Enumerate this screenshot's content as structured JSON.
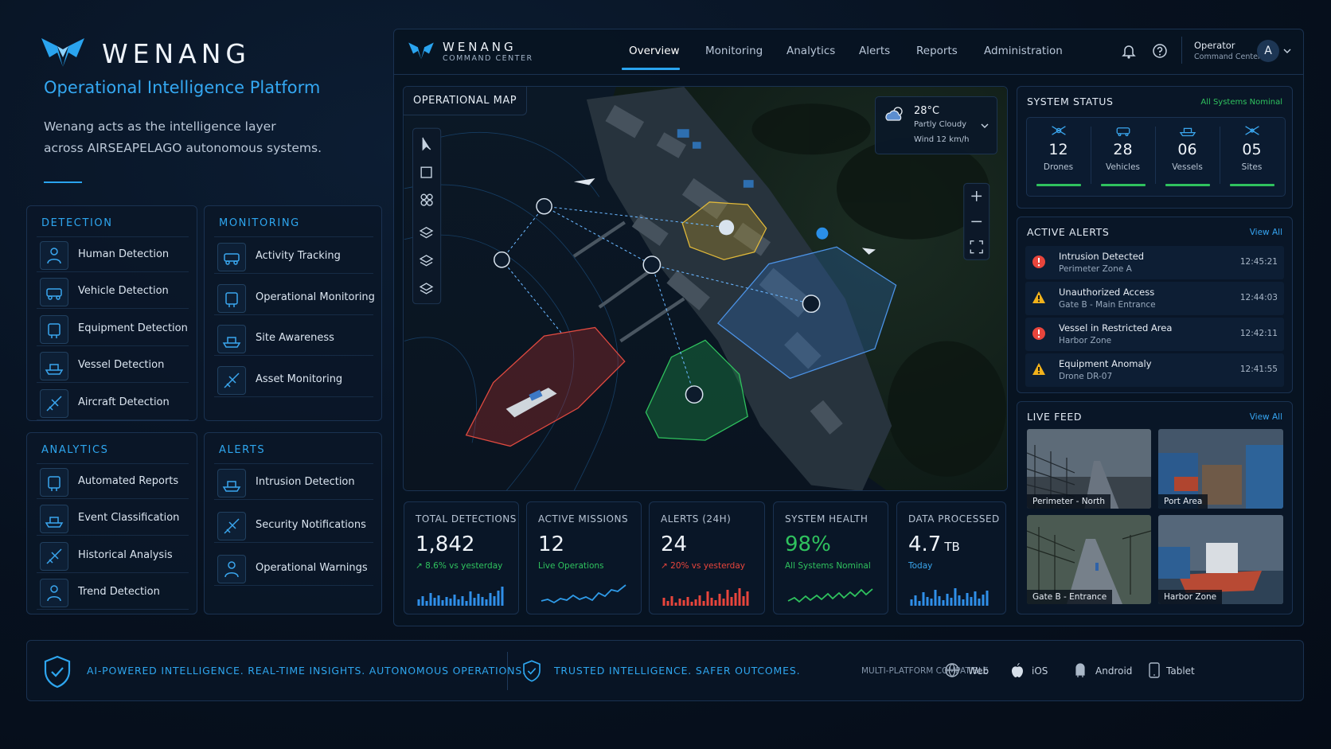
{
  "brand": {
    "name": "WENANG",
    "tagline": "Operational Intelligence Platform",
    "description": [
      "Wenang acts as the intelligence layer",
      "across AIRSEAPELAGO autonomous systems."
    ]
  },
  "modules": [
    {
      "title": "DETECTION",
      "items": [
        "Human Detection",
        "Vehicle Detection",
        "Equipment Detection",
        "Vessel Detection",
        "Aircraft Detection"
      ]
    },
    {
      "title": "MONITORING",
      "items": [
        "Activity Tracking",
        "Operational Monitoring",
        "Site Awareness",
        "Asset Monitoring"
      ]
    },
    {
      "title": "ANALYTICS",
      "items": [
        "Automated Reports",
        "Event Classification",
        "Historical Analysis",
        "Trend Detection"
      ]
    },
    {
      "title": "ALERTS",
      "items": [
        "Intrusion Detection",
        "Security Notifications",
        "Operational Warnings"
      ]
    }
  ],
  "header": {
    "brand": "WENANG",
    "subtitle": "COMMAND CENTER",
    "nav": [
      "Overview",
      "Monitoring",
      "Analytics",
      "Alerts",
      "Reports",
      "Administration"
    ],
    "active_nav": 0,
    "user": {
      "name": "Operator",
      "role": "Command Center",
      "initial": "A"
    }
  },
  "map": {
    "title": "OPERATIONAL MAP",
    "weather": {
      "temperature": "28°C",
      "condition": "Partly Cloudy",
      "wind": "Wind 12 km/h"
    }
  },
  "system_status": {
    "title": "SYSTEM STATUS",
    "status": "All Systems Nominal",
    "items": [
      {
        "value": "12",
        "label": "Drones"
      },
      {
        "value": "28",
        "label": "Vehicles"
      },
      {
        "value": "06",
        "label": "Vessels"
      },
      {
        "value": "05",
        "label": "Sites"
      }
    ]
  },
  "active_alerts": {
    "title": "ACTIVE ALERTS",
    "link": "View All",
    "items": [
      {
        "title": "Intrusion Detected",
        "location": "Perimeter Zone A",
        "time": "12:45:21",
        "level": "critical"
      },
      {
        "title": "Unauthorized Access",
        "location": "Gate B - Main Entrance",
        "time": "12:44:03",
        "level": "warning"
      },
      {
        "title": "Vessel in Restricted Area",
        "location": "Harbor Zone",
        "time": "12:42:11",
        "level": "critical"
      },
      {
        "title": "Equipment Anomaly",
        "location": "Drone DR-07",
        "time": "12:41:55",
        "level": "warning"
      }
    ]
  },
  "live_feed": {
    "title": "LIVE FEED",
    "link": "View All",
    "feeds": [
      "Perimeter - North",
      "Port Area",
      "Gate B - Entrance",
      "Harbor Zone"
    ]
  },
  "kpis": [
    {
      "label": "TOTAL DETECTIONS",
      "value": "1,842",
      "note": "↗ 8.6% vs yesterday"
    },
    {
      "label": "ACTIVE MISSIONS",
      "value": "12",
      "note": "Live Operations"
    },
    {
      "label": "ALERTS (24H)",
      "value": "24",
      "note": "↗ 20% vs yesterday"
    },
    {
      "label": "SYSTEM HEALTH",
      "value": "98%",
      "note": "All Systems Nominal"
    },
    {
      "label": "DATA PROCESSED",
      "value": "4.7",
      "unit": "TB",
      "note": "Today"
    }
  ],
  "footer": {
    "tagline_primary": "AI-POWERED INTELLIGENCE. REAL-TIME INSIGHTS. AUTONOMOUS OPERATIONS.",
    "tagline_secondary": "TRUSTED INTELLIGENCE. SAFER OUTCOMES.",
    "platforms_label": "MULTI-PLATFORM COMPATIBLE",
    "platforms": [
      "Web",
      "iOS",
      "Android",
      "Tablet"
    ]
  }
}
